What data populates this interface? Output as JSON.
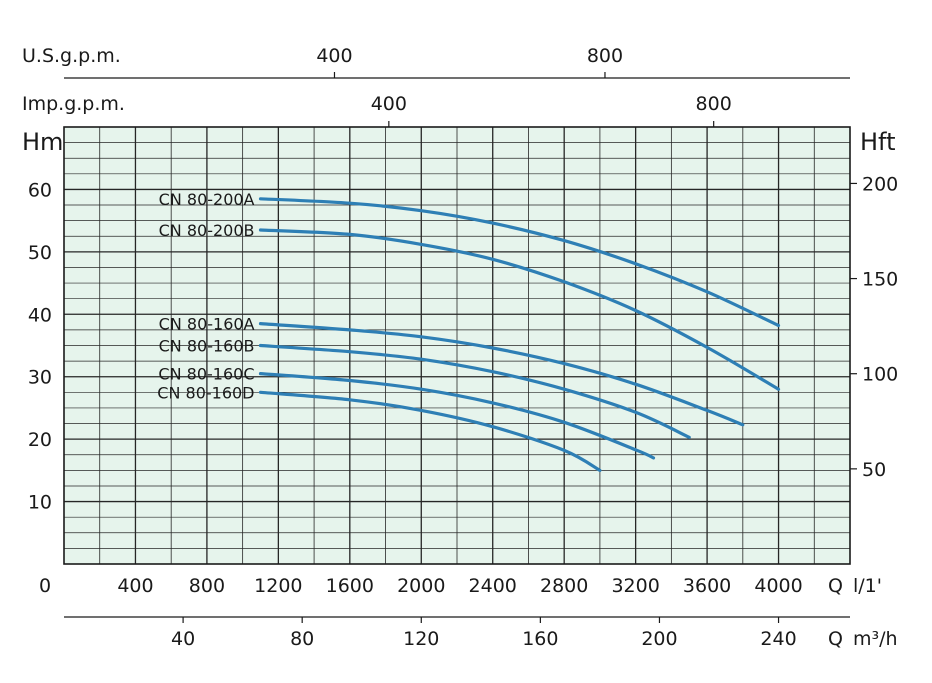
{
  "chart_data": {
    "type": "line",
    "axes": {
      "q_lmin": {
        "label": "Q",
        "unit": "l/1'",
        "range": [
          0,
          4400
        ],
        "ticks": [
          0,
          400,
          800,
          1200,
          1600,
          2000,
          2400,
          2800,
          3200,
          3600,
          4000
        ]
      },
      "q_m3h": {
        "label": "Q",
        "unit": "m³/h",
        "ticks": [
          40,
          80,
          120,
          160,
          200,
          240
        ]
      },
      "us_gpm": {
        "label": "U.S.g.p.m.",
        "ticks": [
          400,
          800
        ]
      },
      "imp_gpm": {
        "label": "Imp.g.p.m.",
        "ticks": [
          400,
          800
        ]
      },
      "head_m": {
        "label": "Hm",
        "range": [
          0,
          70
        ],
        "ticks": [
          10,
          20,
          30,
          40,
          50,
          60
        ]
      },
      "head_ft": {
        "label": "Hft",
        "ticks": [
          50,
          100,
          150,
          200
        ]
      }
    },
    "grid": true,
    "series_color": "#2e7fb5",
    "background_color": "#e6f4ec",
    "series": [
      {
        "name": "CN 80-200A",
        "x": [
          1100,
          1600,
          2000,
          2400,
          2800,
          3200,
          3600,
          4000
        ],
        "y": [
          58.5,
          57.8,
          56.6,
          54.6,
          51.8,
          48.1,
          43.6,
          38.2
        ]
      },
      {
        "name": "CN 80-200B",
        "x": [
          1100,
          1600,
          2000,
          2400,
          2800,
          3200,
          3600,
          4000
        ],
        "y": [
          53.5,
          52.8,
          51.2,
          48.8,
          45.2,
          40.6,
          34.7,
          28
        ]
      },
      {
        "name": "CN 80-160A",
        "x": [
          1100,
          1600,
          2000,
          2400,
          2800,
          3200,
          3600,
          3800
        ],
        "y": [
          38.5,
          37.5,
          36.4,
          34.6,
          32.1,
          28.8,
          24.6,
          22.3
        ]
      },
      {
        "name": "CN 80-160B",
        "x": [
          1100,
          1600,
          2000,
          2400,
          2800,
          3200,
          3500
        ],
        "y": [
          35,
          34,
          32.8,
          30.8,
          28,
          24.3,
          20.3
        ]
      },
      {
        "name": "CN 80-160C",
        "x": [
          1100,
          1600,
          2000,
          2400,
          2800,
          3200,
          3300
        ],
        "y": [
          30.5,
          29.4,
          28,
          25.8,
          22.7,
          18.3,
          17
        ]
      },
      {
        "name": "CN 80-160D",
        "x": [
          1100,
          1600,
          2000,
          2400,
          2800,
          3000
        ],
        "y": [
          27.5,
          26.3,
          24.6,
          22,
          18.2,
          15
        ]
      }
    ]
  }
}
